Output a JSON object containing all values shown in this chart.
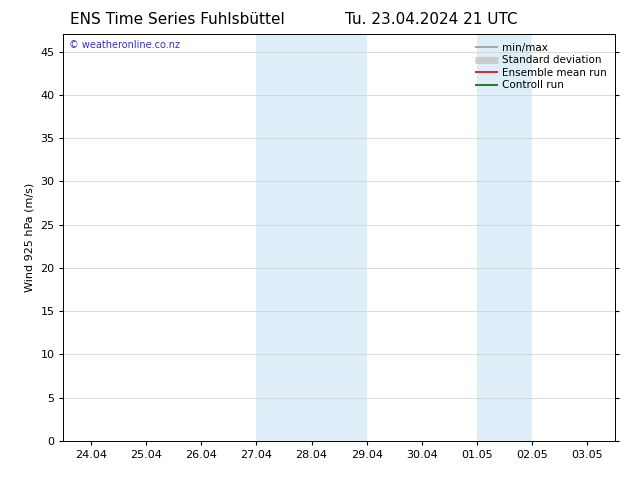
{
  "title_left": "ENS Time Series Fuhlsbüttel",
  "title_right": "Tu. 23.04.2024 21 UTC",
  "ylabel": "Wind 925 hPa (m/s)",
  "xtick_labels": [
    "24.04",
    "25.04",
    "26.04",
    "27.04",
    "28.04",
    "29.04",
    "30.04",
    "01.05",
    "02.05",
    "03.05"
  ],
  "xtick_values": [
    0,
    1,
    2,
    3,
    4,
    5,
    6,
    7,
    8,
    9
  ],
  "xlim": [
    -0.5,
    9.5
  ],
  "ylim": [
    0,
    47
  ],
  "ytick_values": [
    0,
    5,
    10,
    15,
    20,
    25,
    30,
    35,
    40,
    45
  ],
  "shaded_regions": [
    {
      "xstart": 3,
      "xend": 5,
      "color": "#ddeef8"
    },
    {
      "xstart": 7,
      "xend": 8,
      "color": "#ddeef8"
    }
  ],
  "watermark_text": "© weatheronline.co.nz",
  "watermark_color": "#3333cc",
  "legend_entries": [
    {
      "label": "min/max",
      "color": "#999999",
      "lw": 1.2
    },
    {
      "label": "Standard deviation",
      "color": "#cccccc",
      "lw": 5
    },
    {
      "label": "Ensemble mean run",
      "color": "#dd0000",
      "lw": 1.2
    },
    {
      "label": "Controll run",
      "color": "#006600",
      "lw": 1.2
    }
  ],
  "bg_color": "#ffffff",
  "title_fontsize": 11,
  "tick_fontsize": 8,
  "ylabel_fontsize": 8,
  "legend_fontsize": 7.5
}
